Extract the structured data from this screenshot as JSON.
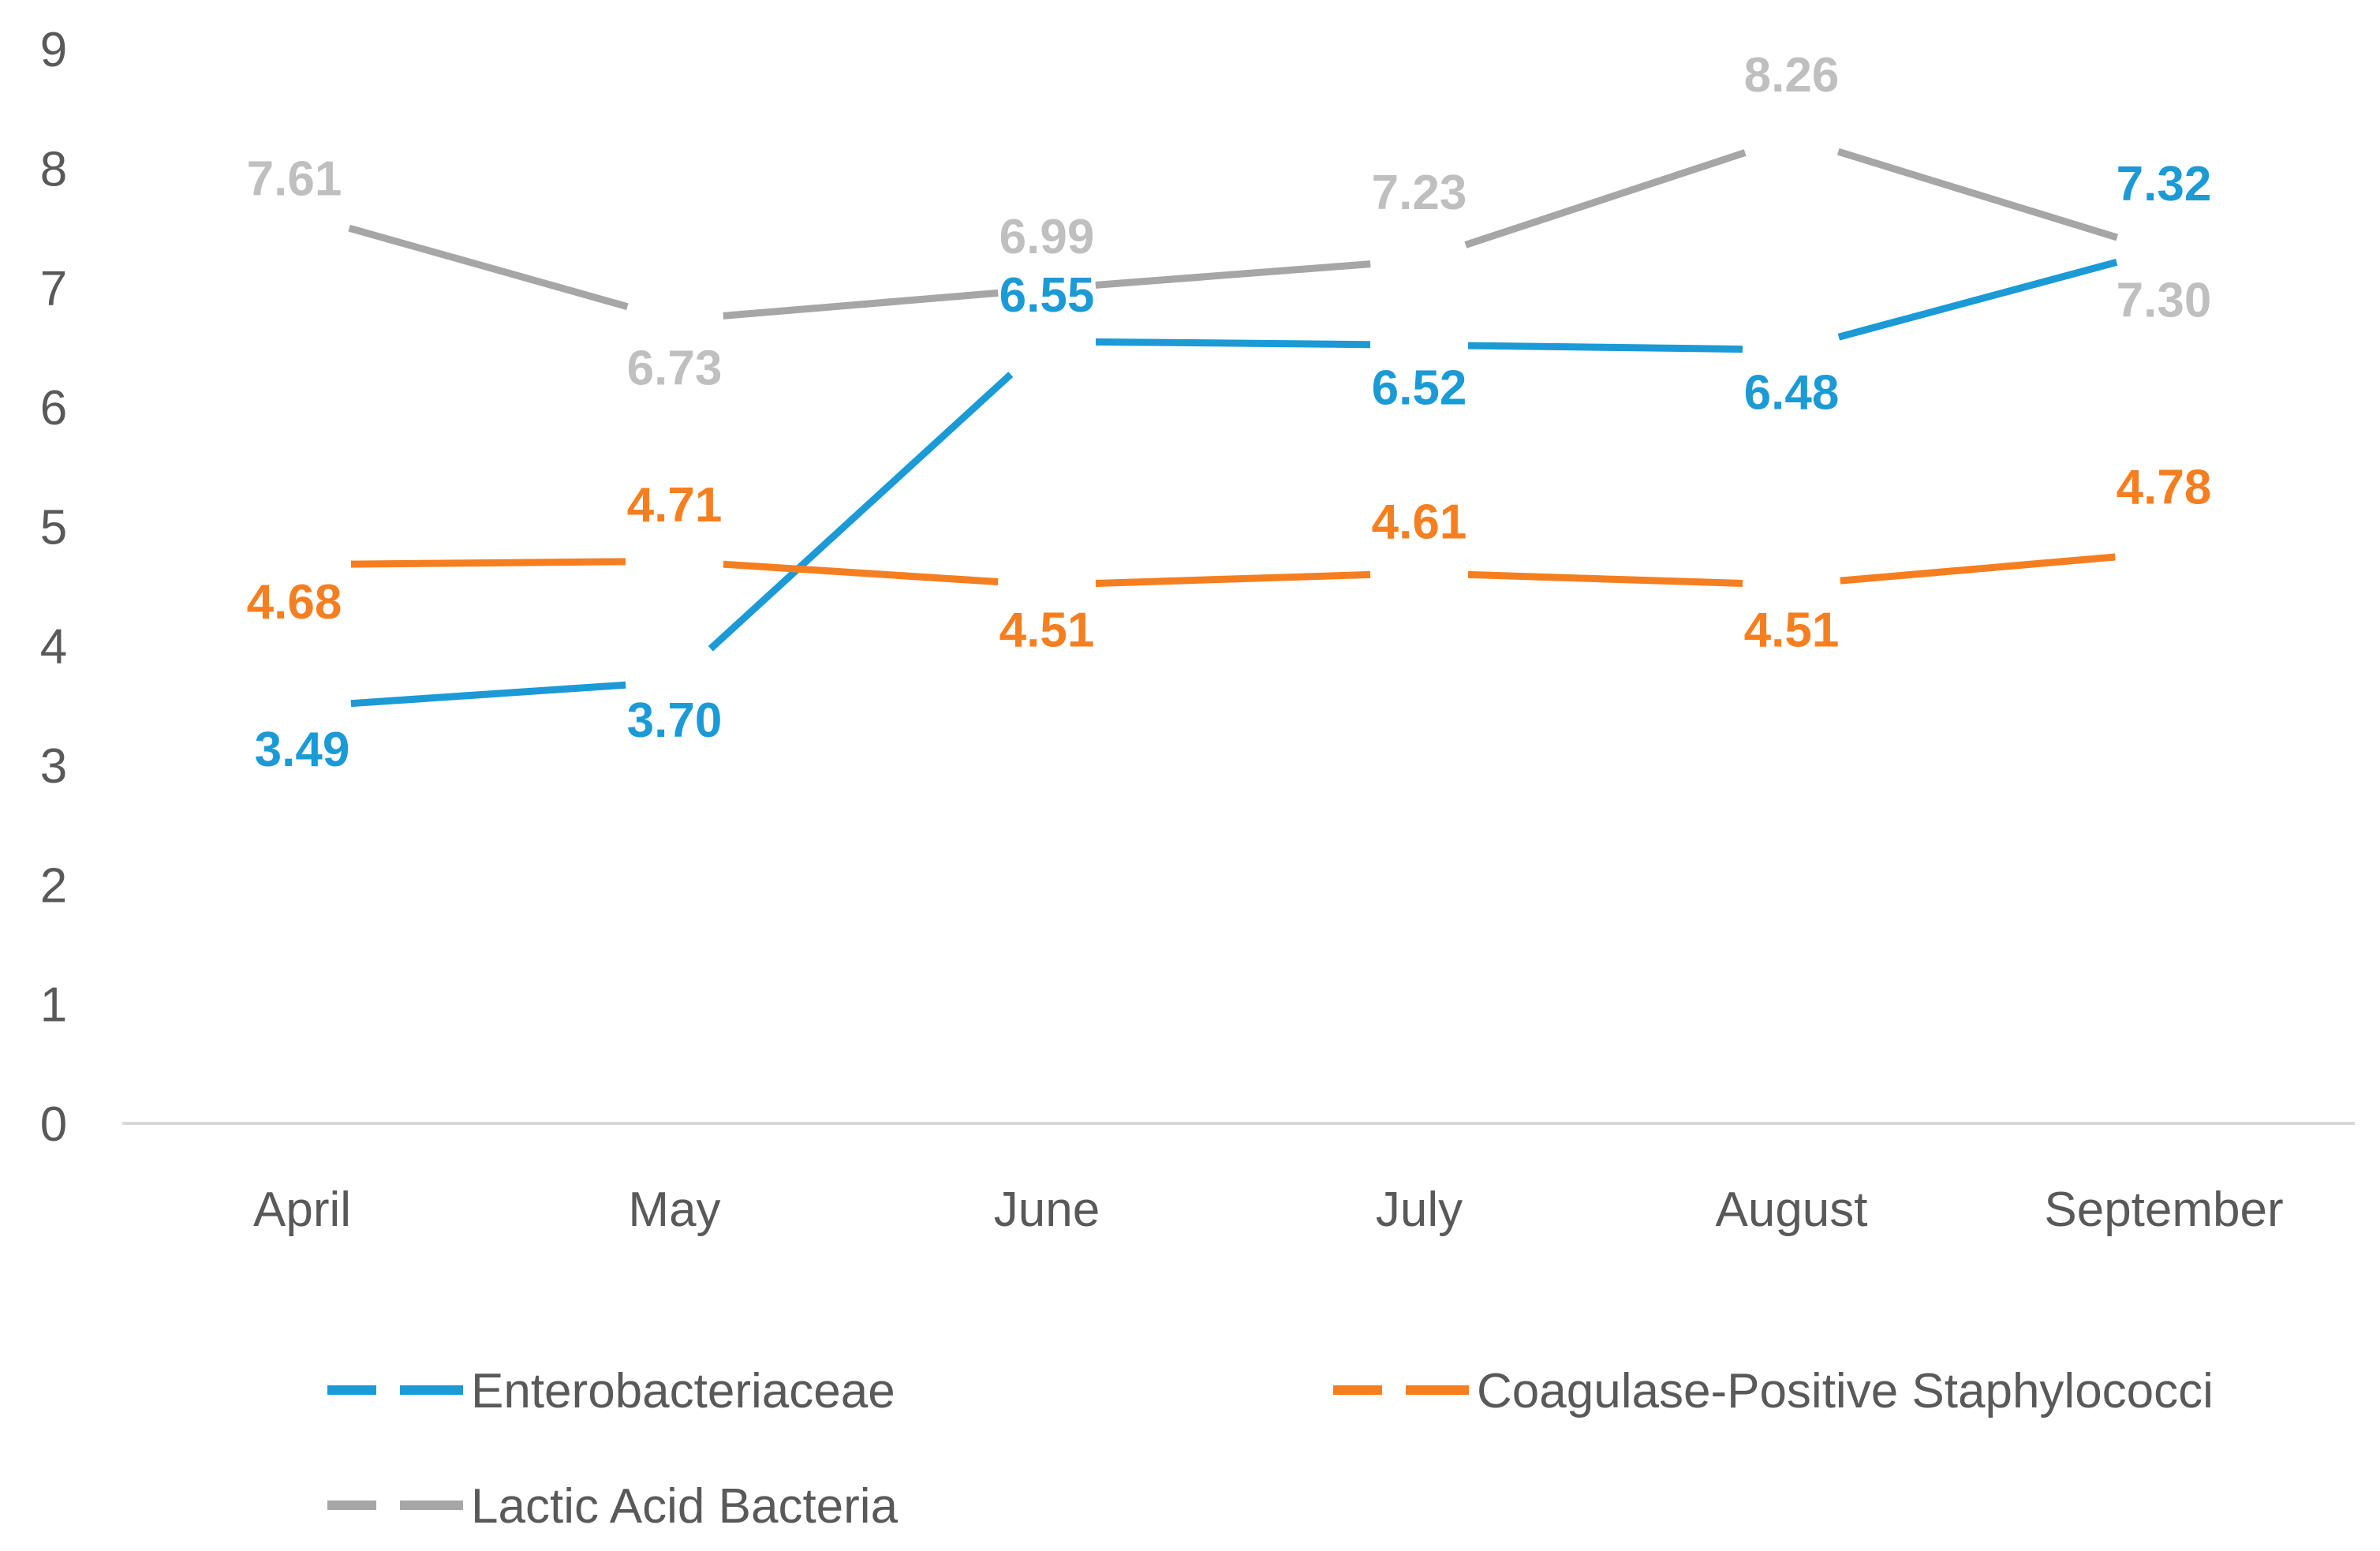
{
  "chart_data": {
    "type": "line",
    "title": "",
    "xlabel": "",
    "ylabel": "",
    "categories": [
      "April",
      "May",
      "June",
      "July",
      "August",
      "September"
    ],
    "ylim": [
      0,
      9
    ],
    "yticks": [
      "0",
      "1",
      "2",
      "3",
      "4",
      "5",
      "6",
      "7",
      "8",
      "9"
    ],
    "grid": false,
    "legend_position": "bottom",
    "series": [
      {
        "name": "Enterobacteriaceae",
        "color": "#1B9AD6",
        "values": [
          3.49,
          3.7,
          6.55,
          6.52,
          6.48,
          7.32
        ],
        "labels": [
          "3.49",
          "3.70",
          "6.55",
          "6.52",
          "6.48",
          "7.32"
        ]
      },
      {
        "name": "Coagulase-Positive Staphylococci",
        "color": "#F57F20",
        "values": [
          4.68,
          4.71,
          4.51,
          4.61,
          4.51,
          4.78
        ],
        "labels": [
          "4.68",
          "4.71",
          "4.51",
          "4.61",
          "4.51",
          "4.78"
        ]
      },
      {
        "name": "Lactic Acid Bacteria",
        "color": "#A6A6A6",
        "label_color": "#BFBFBF",
        "values": [
          7.61,
          6.73,
          6.99,
          7.23,
          8.26,
          7.3
        ],
        "labels": [
          "7.61",
          "6.73",
          "6.99",
          "7.23",
          "8.26",
          "7.30"
        ]
      }
    ]
  }
}
